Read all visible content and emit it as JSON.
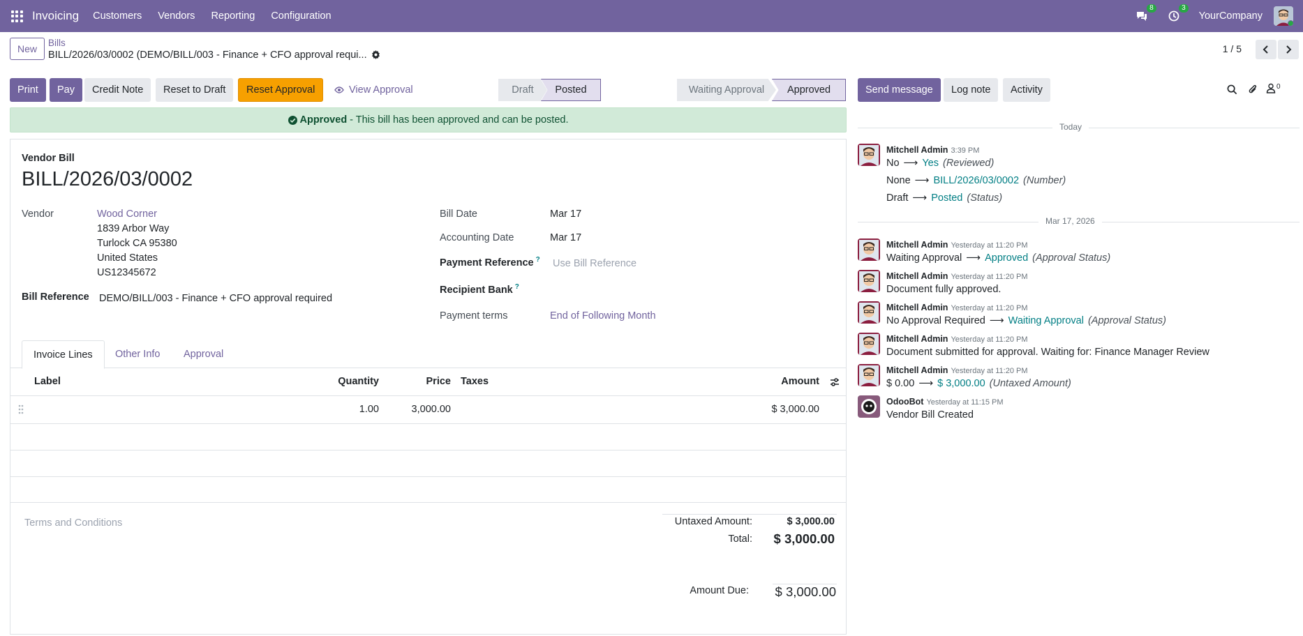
{
  "navbar": {
    "app_name": "Invoicing",
    "menu": [
      "Customers",
      "Vendors",
      "Reporting",
      "Configuration"
    ],
    "messages_count": "8",
    "activities_count": "3",
    "company": "YourCompany"
  },
  "control_panel": {
    "new_label": "New",
    "breadcrumb_parent": "Bills",
    "breadcrumb_current": "BILL/2026/03/0002 (DEMO/BILL/003 - Finance + CFO approval requi...",
    "pager": "1 / 5"
  },
  "actions": {
    "print": "Print",
    "pay": "Pay",
    "credit_note": "Credit Note",
    "reset_to_draft": "Reset to Draft",
    "reset_approval": "Reset Approval",
    "view_approval": "View Approval"
  },
  "status_stages": [
    "Draft",
    "Posted"
  ],
  "status_active": "Posted",
  "approval_stages": [
    "Waiting Approval",
    "Approved"
  ],
  "approval_active": "Approved",
  "alert": {
    "strong": "Approved",
    "text": "- This bill has been approved and can be posted."
  },
  "form": {
    "doc_type": "Vendor Bill",
    "name": "BILL/2026/03/0002",
    "vendor_label": "Vendor",
    "vendor_name": "Wood Corner",
    "vendor_address": [
      "1839 Arbor Way",
      "Turlock CA 95380",
      "United States",
      "US12345672"
    ],
    "bill_reference_label": "Bill Reference",
    "bill_reference": "DEMO/BILL/003 - Finance + CFO approval required",
    "bill_date_label": "Bill Date",
    "bill_date": "Mar 17",
    "accounting_date_label": "Accounting Date",
    "accounting_date": "Mar 17",
    "payment_reference_label": "Payment Reference",
    "payment_reference_placeholder": "Use Bill Reference",
    "recipient_bank_label": "Recipient Bank",
    "payment_terms_label": "Payment terms",
    "payment_terms": "End of Following Month",
    "help_mark": "?"
  },
  "tabs": [
    "Invoice Lines",
    "Other Info",
    "Approval"
  ],
  "lines": {
    "headers": {
      "label": "Label",
      "quantity": "Quantity",
      "price": "Price",
      "taxes": "Taxes",
      "amount": "Amount"
    },
    "rows": [
      {
        "label": "",
        "quantity": "1.00",
        "price": "3,000.00",
        "taxes": "",
        "amount": "$ 3,000.00"
      }
    ]
  },
  "terms_placeholder": "Terms and Conditions",
  "totals": {
    "untaxed_label": "Untaxed Amount:",
    "untaxed": "$ 3,000.00",
    "total_label": "Total:",
    "total": "$ 3,000.00",
    "amount_due_label": "Amount Due:",
    "amount_due": "$ 3,000.00"
  },
  "chatter": {
    "send_message": "Send message",
    "log_note": "Log note",
    "activity": "Activity",
    "followers_count": "0",
    "today_label": "Today",
    "date_label": "Mar 17, 2026",
    "messages": [
      {
        "author": "Mitchell Admin",
        "time": "3:39 PM",
        "changes": [
          {
            "from": "No",
            "to": "Yes",
            "field": "(Reviewed)"
          },
          {
            "from": "None",
            "to": "BILL/2026/03/0002",
            "field": "(Number)"
          },
          {
            "from": "Draft",
            "to": "Posted",
            "field": "(Status)"
          }
        ]
      },
      {
        "author": "Mitchell Admin",
        "time": "Yesterday at 11:20 PM",
        "change": {
          "from": "Waiting Approval",
          "to": "Approved",
          "field": "(Approval Status)"
        }
      },
      {
        "author": "Mitchell Admin",
        "time": "Yesterday at 11:20 PM",
        "body": "Document fully approved."
      },
      {
        "author": "Mitchell Admin",
        "time": "Yesterday at 11:20 PM",
        "change": {
          "from": "No Approval Required",
          "to": "Waiting Approval",
          "field": "(Approval Status)"
        }
      },
      {
        "author": "Mitchell Admin",
        "time": "Yesterday at 11:20 PM",
        "body": "Document submitted for approval. Waiting for: Finance Manager Review"
      },
      {
        "author": "Mitchell Admin",
        "time": "Yesterday at 11:20 PM",
        "change": {
          "from": "$ 0.00",
          "to": "$ 3,000.00",
          "field": "(Untaxed Amount)"
        }
      },
      {
        "author": "OdooBot",
        "time": "Yesterday at 11:15 PM",
        "body": "Vendor Bill Created"
      }
    ]
  },
  "colors": {
    "brand": "#71639e",
    "success_bg": "#d1ead8",
    "warning": "#f7a000",
    "teal": "#017e84",
    "badge": "#28a745"
  }
}
